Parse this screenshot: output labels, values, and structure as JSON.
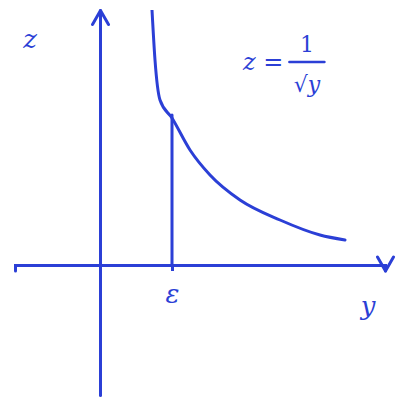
{
  "chart_data": {
    "type": "line",
    "x_label": "y",
    "y_label": "z",
    "annotation": {
      "lhs": "z =",
      "numerator": "1",
      "denominator": "√y"
    },
    "xlim": [
      -0.85,
      2.85
    ],
    "ylim": [
      -1.3,
      2.55
    ],
    "xticks": [
      {
        "value": 0.72,
        "label": "ε"
      }
    ],
    "yticks": [],
    "tick_labels": "x",
    "grid": false,
    "color": "#2b3fd6",
    "series": [
      {
        "x": [
          0.52,
          0.55,
          0.6,
          0.72,
          0.9,
          1.1,
          1.4,
          1.8,
          2.2,
          2.45
        ],
        "values": [
          2.55,
          2.05,
          1.65,
          1.47,
          1.15,
          0.9,
          0.65,
          0.45,
          0.3,
          0.25
        ]
      },
      {
        "x": [
          0.72,
          0.72
        ],
        "values": [
          0,
          1.5
        ]
      }
    ]
  }
}
